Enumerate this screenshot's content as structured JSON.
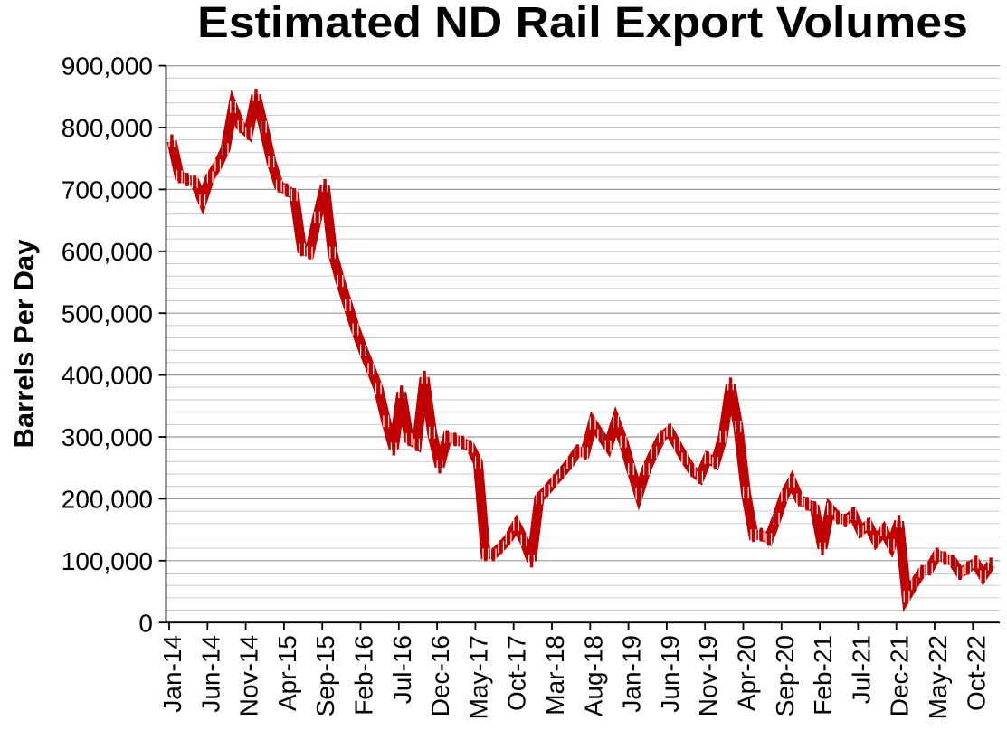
{
  "chart": {
    "title": "Estimated ND Rail Export Volumes",
    "y_axis_title": "Barrels Per Day"
  },
  "chart_data": {
    "type": "line",
    "title": "Estimated ND Rail Export Volumes",
    "ylabel": "Barrels Per Day",
    "ylim": [
      0,
      900000
    ],
    "y_major_step": 100000,
    "y_minor_step": 20000,
    "y_tick_labels": [
      "0",
      "100,000",
      "200,000",
      "300,000",
      "400,000",
      "500,000",
      "600,000",
      "700,000",
      "800,000",
      "900,000"
    ],
    "x_tick_label_every": 5,
    "grid": true,
    "legend": false,
    "line_color": "#C00000",
    "x": [
      "Jan-14",
      "Feb-14",
      "Mar-14",
      "Apr-14",
      "May-14",
      "Jun-14",
      "Jul-14",
      "Aug-14",
      "Sep-14",
      "Oct-14",
      "Nov-14",
      "Dec-14",
      "Jan-15",
      "Feb-15",
      "Mar-15",
      "Apr-15",
      "May-15",
      "Jun-15",
      "Jul-15",
      "Aug-15",
      "Sep-15",
      "Oct-15",
      "Nov-15",
      "Dec-15",
      "Jan-16",
      "Feb-16",
      "Mar-16",
      "Apr-16",
      "May-16",
      "Jun-16",
      "Jul-16",
      "Aug-16",
      "Sep-16",
      "Oct-16",
      "Nov-16",
      "Dec-16",
      "Jan-17",
      "Feb-17",
      "Mar-17",
      "Apr-17",
      "May-17",
      "Jun-17",
      "Jul-17",
      "Aug-17",
      "Sep-17",
      "Oct-17",
      "Nov-17",
      "Dec-17",
      "Jan-18",
      "Feb-18",
      "Mar-18",
      "Apr-18",
      "May-18",
      "Jun-18",
      "Jul-18",
      "Aug-18",
      "Sep-18",
      "Oct-18",
      "Nov-18",
      "Dec-18",
      "Jan-19",
      "Feb-19",
      "Mar-19",
      "Apr-19",
      "May-19",
      "Jun-19",
      "Jul-19",
      "Aug-19",
      "Sep-19",
      "Oct-19",
      "Nov-19",
      "Dec-19",
      "Jan-20",
      "Feb-20",
      "Mar-20",
      "Apr-20",
      "May-20",
      "Jun-20",
      "Jul-20",
      "Aug-20",
      "Sep-20",
      "Oct-20",
      "Nov-20",
      "Dec-20",
      "Jan-21",
      "Feb-21",
      "Mar-21",
      "Apr-21",
      "May-21",
      "Jun-21",
      "Jul-21",
      "Aug-21",
      "Sep-21",
      "Oct-21",
      "Nov-21",
      "Dec-21",
      "Jan-22",
      "Feb-22",
      "Mar-22",
      "Apr-22",
      "May-22",
      "Jun-22",
      "Jul-22",
      "Aug-22",
      "Sep-22",
      "Oct-22",
      "Nov-22",
      "Dec-22"
    ],
    "series": [
      {
        "name": "Estimated ND Rail Export Volumes",
        "values": [
          778000,
          721000,
          716000,
          712000,
          682000,
          720000,
          739000,
          765000,
          833000,
          802000,
          791000,
          852000,
          801000,
          745000,
          706000,
          699000,
          691000,
          603000,
          598000,
          655000,
          706000,
          598000,
          552000,
          513000,
          474000,
          440000,
          410000,
          378000,
          325000,
          281000,
          372000,
          296000,
          288000,
          396000,
          307000,
          252000,
          300000,
          296000,
          291000,
          284000,
          259000,
          110000,
          110000,
          122000,
          136000,
          158000,
          133000,
          100000,
          201000,
          214000,
          229000,
          243000,
          258000,
          277000,
          274000,
          322000,
          303000,
          285000,
          325000,
          292000,
          248000,
          208000,
          248000,
          275000,
          300000,
          310000,
          287000,
          265000,
          246000,
          235000,
          266000,
          258000,
          300000,
          385000,
          317000,
          210000,
          141000,
          142000,
          135000,
          168000,
          205000,
          228000,
          199000,
          192000,
          185000,
          120000,
          184000,
          170000,
          165000,
          175000,
          148000,
          158000,
          132000,
          149000,
          125000,
          163000,
          42000,
          63000,
          82000,
          87000,
          110000,
          104000,
          99000,
          80000,
          88000,
          97000,
          75000,
          94000
        ]
      }
    ]
  },
  "style": {
    "line_color": "#C00000",
    "minor_grid_color": "#C9C9C9",
    "major_grid_color": "#999999",
    "axis_color": "#000000",
    "text_color": "#000000"
  }
}
